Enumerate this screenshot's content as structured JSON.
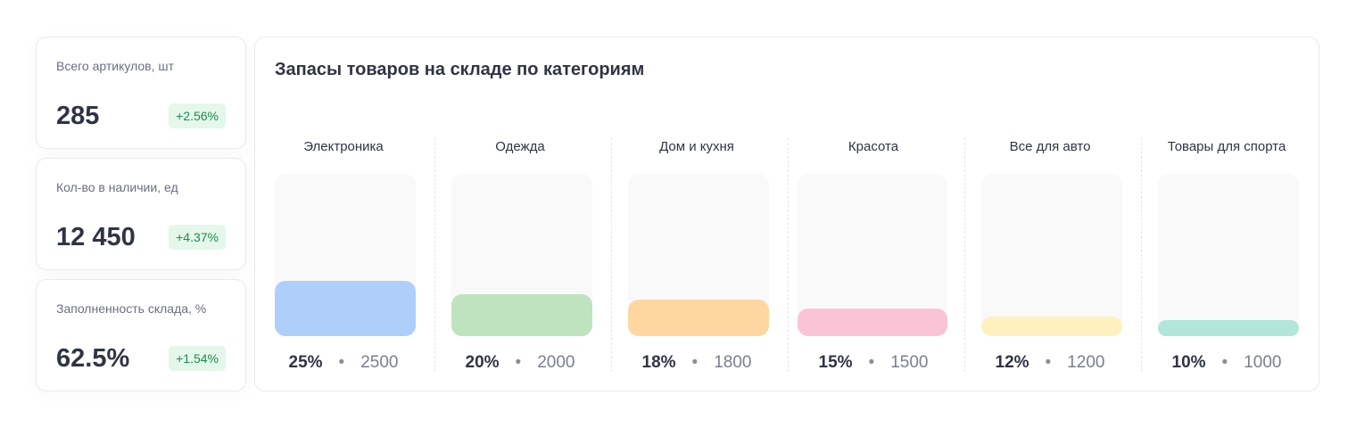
{
  "kpis": [
    {
      "label": "Всего артикулов, шт",
      "value": "285",
      "change": "+2.56%"
    },
    {
      "label": "Кол-во в наличии, ед",
      "value": "12 450",
      "change": "+4.37%"
    },
    {
      "label": "Заполненность склада, %",
      "value": "62.5%",
      "change": "+1.54%"
    }
  ],
  "chart_data": {
    "type": "bar",
    "title": "Запасы товаров на складе по категориям",
    "categories": [
      "Электроника",
      "Одежда",
      "Дом и кухня",
      "Красота",
      "Все для авто",
      "Товары для спорта"
    ],
    "percent_labels": [
      "25%",
      "20%",
      "18%",
      "15%",
      "12%",
      "10%"
    ],
    "count_labels": [
      "2500",
      "2000",
      "1800",
      "1500",
      "1200",
      "1000"
    ],
    "values": [
      25,
      20,
      18,
      15,
      12,
      10
    ],
    "counts": [
      2500,
      2000,
      1800,
      1500,
      1200,
      1000
    ],
    "colors": [
      "#aecffa",
      "#bfe3bf",
      "#fed6a0",
      "#f8c4d6",
      "#fdf1bf",
      "#b2e6da"
    ],
    "separator": "•"
  }
}
